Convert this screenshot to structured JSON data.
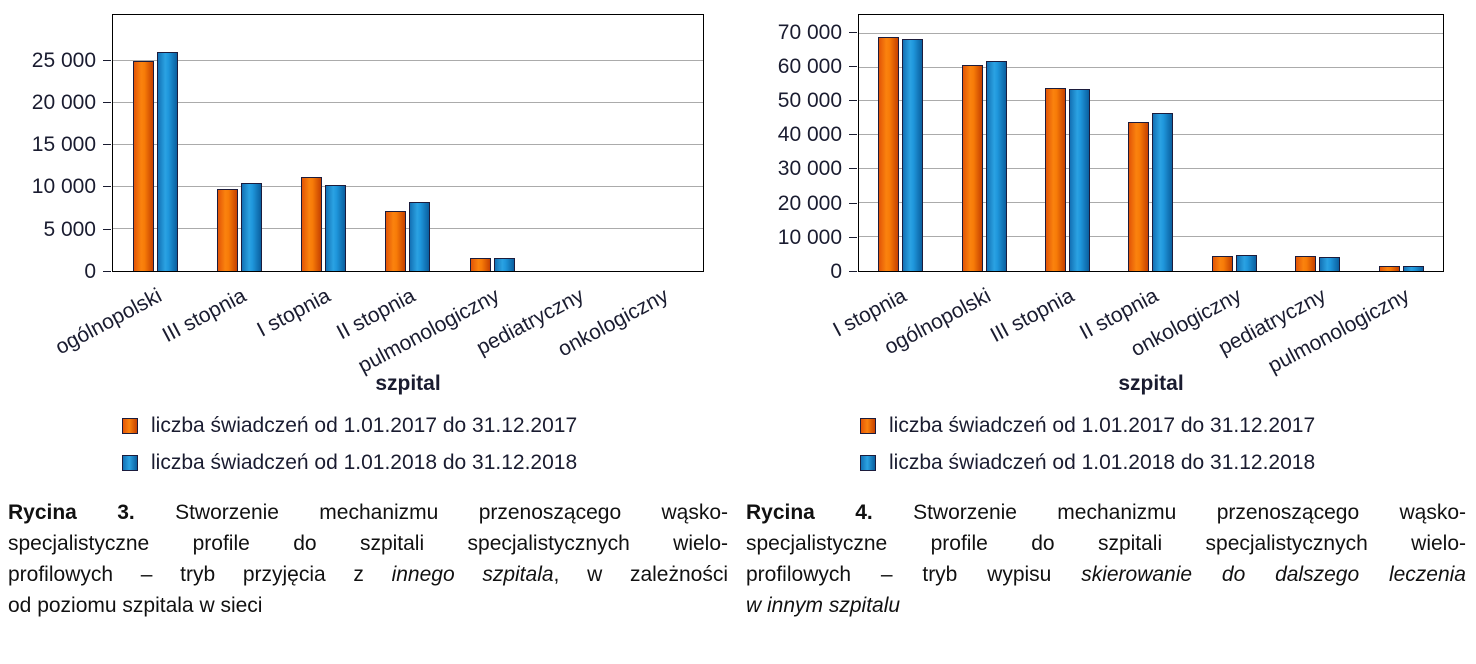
{
  "colors": {
    "bar_2017": "#eb6a0a",
    "bar_2018": "#1e8fd5",
    "bar_border": "#1c1c3c",
    "gridline": "#ababab",
    "text": "#1a1c30"
  },
  "chart_data": [
    {
      "type": "bar",
      "title": "Rycina 3",
      "xlabel": "szpital",
      "ylabel": "",
      "ylim": [
        0,
        30500
      ],
      "grid": true,
      "legend_position": "bottom-left",
      "categories": [
        "ogólnopolski",
        "III stopnia",
        "I stopnia",
        "II stopnia",
        "pulmonologiczny",
        "pediatryczny",
        "onkologiczny"
      ],
      "series": [
        {
          "name": "liczba świadczeń od 1.01.2017 do 31.12.2017",
          "values": [
            25000,
            9800,
            11200,
            7200,
            1600,
            0,
            0
          ]
        },
        {
          "name": "liczba świadczeń od 1.01.2018 do 31.12.2018",
          "values": [
            26100,
            10500,
            10300,
            8200,
            1600,
            0,
            0
          ]
        }
      ],
      "yticks": [
        {
          "value": 0,
          "label": "0"
        },
        {
          "value": 5000,
          "label": "5 000"
        },
        {
          "value": 10000,
          "label": "10 000"
        },
        {
          "value": 15000,
          "label": "15 000"
        },
        {
          "value": 20000,
          "label": "20 000"
        },
        {
          "value": 25000,
          "label": "25 000"
        }
      ]
    },
    {
      "type": "bar",
      "title": "Rycina 4",
      "xlabel": "szpital",
      "ylabel": "",
      "ylim": [
        0,
        75500
      ],
      "grid": true,
      "legend_position": "bottom-left",
      "categories": [
        "I stopnia",
        "ogólnopolski",
        "III stopnia",
        "II stopnia",
        "onkologiczny",
        "pediatryczny",
        "pulmonologiczny"
      ],
      "series": [
        {
          "name": "liczba świadczeń od 1.01.2017 do 31.12.2017",
          "values": [
            69000,
            60800,
            54000,
            44000,
            4500,
            4500,
            1400
          ]
        },
        {
          "name": "liczba świadczeń od 1.01.2018 do 31.12.2018",
          "values": [
            68400,
            61900,
            53800,
            46500,
            4600,
            4200,
            1500
          ]
        }
      ],
      "yticks": [
        {
          "value": 0,
          "label": "0"
        },
        {
          "value": 10000,
          "label": "10 000"
        },
        {
          "value": 20000,
          "label": "20 000"
        },
        {
          "value": 30000,
          "label": "30 000"
        },
        {
          "value": 40000,
          "label": "40 000"
        },
        {
          "value": 50000,
          "label": "50 000"
        },
        {
          "value": 60000,
          "label": "60 000"
        },
        {
          "value": 70000,
          "label": "70 000"
        }
      ]
    }
  ],
  "figures": [
    {
      "axis_title": "szpital",
      "legend": [
        {
          "series": 0,
          "label": "liczba świadczeń od 1.01.2017 do 31.12.2017"
        },
        {
          "series": 1,
          "label": "liczba świadczeń od 1.01.2018 do 31.12.2018"
        }
      ],
      "caption_lines": [
        [
          {
            "t": "Rycina 3.",
            "b": true
          },
          {
            "t": " Stworzenie mechanizmu przenoszącego wąsko-"
          }
        ],
        [
          {
            "t": "specjalistyczne profile do szpitali specjalistycznych wielo-"
          }
        ],
        [
          {
            "t": "profilowych – tryb przyjęcia z "
          },
          {
            "t": "innego szpitala",
            "i": true
          },
          {
            "t": ", w zależności"
          }
        ],
        [
          {
            "t": "od poziomu szpitala w sieci"
          }
        ]
      ]
    },
    {
      "axis_title": "szpital",
      "legend": [
        {
          "series": 0,
          "label": "liczba świadczeń od 1.01.2017 do 31.12.2017"
        },
        {
          "series": 1,
          "label": "liczba świadczeń od 1.01.2018 do 31.12.2018"
        }
      ],
      "caption_lines": [
        [
          {
            "t": "Rycina 4.",
            "b": true
          },
          {
            "t": " Stworzenie mechanizmu przenoszącego wąsko-"
          }
        ],
        [
          {
            "t": "specjalistyczne profile do szpitali specjalistycznych wielo-"
          }
        ],
        [
          {
            "t": "profilowych – tryb wypisu "
          },
          {
            "t": "skierowanie do dalszego leczenia",
            "i": true
          }
        ],
        [
          {
            "t": "w innym szpitalu",
            "i": true
          }
        ]
      ]
    }
  ]
}
